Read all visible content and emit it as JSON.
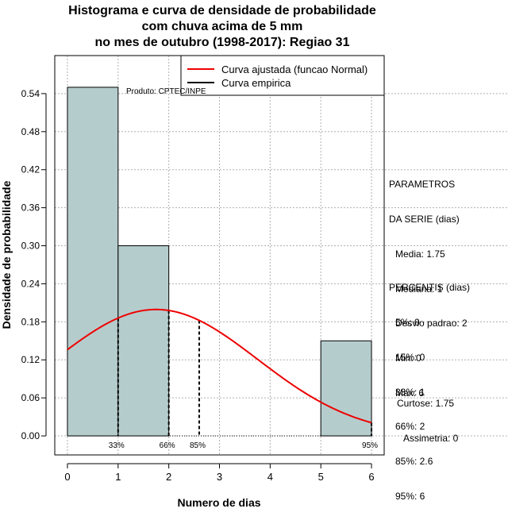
{
  "chart_data": {
    "type": "histogram",
    "title_lines": [
      "Histograma e curva de densidade de probabilidade",
      "com chuva acima de 5 mm",
      "no mes de outubro (1998-2017): Regiao 31"
    ],
    "xlabel": "Numero de dias",
    "ylabel": "Densidade de probabilidade",
    "xlim": [
      -0.25,
      6.25
    ],
    "ylim": [
      -0.03,
      0.6
    ],
    "x_ticks": [
      0,
      1,
      2,
      3,
      4,
      5,
      6
    ],
    "y_ticks": [
      "0.00",
      "0.06",
      "0.12",
      "0.18",
      "0.24",
      "0.30",
      "0.36",
      "0.42",
      "0.48",
      "0.54"
    ],
    "bins": [
      {
        "x0": 0,
        "x1": 1,
        "density": 0.55
      },
      {
        "x0": 1,
        "x1": 2,
        "density": 0.3
      },
      {
        "x0": 2,
        "x1": 3,
        "density": 0.0
      },
      {
        "x0": 3,
        "x1": 4,
        "density": 0.0
      },
      {
        "x0": 4,
        "x1": 5,
        "density": 0.0
      },
      {
        "x0": 5,
        "x1": 6,
        "density": 0.15
      }
    ],
    "normal_fit": {
      "mean": 1.75,
      "sd": 2.0
    },
    "percentile_lines": [
      {
        "label": "33%",
        "x": 1.0
      },
      {
        "label": "66%",
        "x": 2.0
      },
      {
        "label": "85%",
        "x": 2.6
      },
      {
        "label": "95%",
        "x": 6.0
      }
    ],
    "grid": true,
    "legend": {
      "placement": "top-right",
      "items": [
        {
          "label": "Curva ajustada (funcao Normal)",
          "color": "#ee0000"
        },
        {
          "label": "Curva empirica",
          "color": "#000000"
        }
      ]
    },
    "annotation": "Produto: CPTEC/INPE",
    "series_colors": {
      "bars": "#b5cccc",
      "fit": "#ee0000",
      "empirical": "#000000"
    }
  },
  "stats": {
    "params_title": [
      "PARAMETROS",
      "DA SERIE (dias)"
    ],
    "params": [
      "Media: 1.75",
      "Mediana: 1",
      "Desvio padrao: 2",
      "Min: 0",
      "Max: 6"
    ],
    "percentis_title": "PERCENTIS (dias)",
    "percentis": [
      "5%: 0",
      "15%: 0",
      "33%: 1",
      "66%: 2",
      "85%: 2.6",
      "95%: 6"
    ],
    "curtose": "Curtose: 1.75",
    "assimetria": "Assimetria: 0"
  }
}
